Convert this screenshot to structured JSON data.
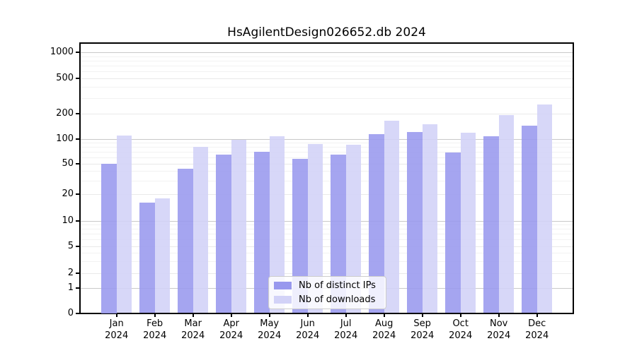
{
  "title": "HsAgilentDesign026652.db 2024",
  "chart_data": {
    "type": "bar",
    "title": "HsAgilentDesign026652.db 2024",
    "categories": [
      "Jan",
      "Feb",
      "Mar",
      "Apr",
      "May",
      "Jun",
      "Jul",
      "Aug",
      "Sep",
      "Oct",
      "Nov",
      "Dec"
    ],
    "year_label": "2024",
    "series": [
      {
        "name": "Nb of distinct IPs",
        "color": "#9898ee",
        "values": [
          50,
          16,
          43,
          65,
          70,
          57,
          64,
          113,
          121,
          68,
          108,
          144
        ]
      },
      {
        "name": "Nb of downloads",
        "color": "#d2d2f7",
        "values": [
          110,
          18,
          80,
          97,
          106,
          86,
          84,
          162,
          148,
          117,
          192,
          253
        ]
      }
    ],
    "y_axis": {
      "scale": "log-like",
      "ticks": [
        0,
        1,
        2,
        5,
        10,
        20,
        50,
        100,
        200,
        500,
        1000
      ],
      "range": [
        0,
        1500
      ]
    },
    "x_axis": {
      "tick_labels": [
        "Jan 2024",
        "Feb 2024",
        "Mar 2024",
        "Apr 2024",
        "May 2024",
        "Jun 2024",
        "Jul 2024",
        "Aug 2024",
        "Sep 2024",
        "Oct 2024",
        "Nov 2024",
        "Dec 2024"
      ]
    },
    "legend": {
      "position": "bottom-center",
      "entries": [
        "Nb of distinct IPs",
        "Nb of downloads"
      ]
    },
    "grid": true,
    "colors": {
      "major_gridline": "#c9c9c9",
      "labeled_gridline": "#e9e9e9",
      "minor_gridline": "#f2f2f2",
      "axis": "#000000"
    }
  }
}
